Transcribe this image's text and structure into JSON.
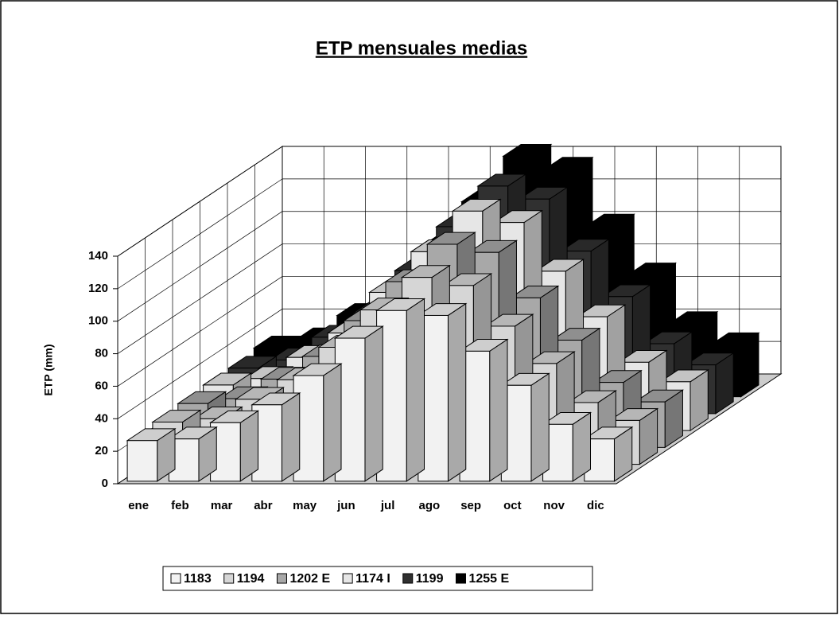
{
  "chart_data": {
    "type": "bar3d",
    "title": "ETP mensuales medias",
    "ylabel": "ETP (mm)",
    "categories": [
      "ene",
      "feb",
      "mar",
      "abr",
      "may",
      "jun",
      "jul",
      "ago",
      "sep",
      "oct",
      "nov",
      "dic"
    ],
    "ylim": [
      0,
      140
    ],
    "yticks": [
      0,
      20,
      40,
      60,
      80,
      100,
      120,
      140
    ],
    "grid": true,
    "legend": "bottom",
    "series": [
      {
        "name": "1183",
        "color": "#f2f2f2",
        "values": [
          25,
          26,
          36,
          47,
          65,
          88,
          105,
          102,
          80,
          59,
          35,
          26
        ]
      },
      {
        "name": "1194",
        "color": "#d6d6d6",
        "values": [
          26,
          28,
          40,
          52,
          72,
          95,
          115,
          110,
          85,
          62,
          38,
          27
        ]
      },
      {
        "name": "1202 E",
        "color": "#a8a8a8",
        "values": [
          27,
          30,
          42,
          56,
          78,
          102,
          125,
          120,
          92,
          66,
          40,
          28
        ]
      },
      {
        "name": "1174 I",
        "color": "#e6e6e6",
        "values": [
          28,
          32,
          45,
          60,
          85,
          110,
          135,
          128,
          98,
          70,
          42,
          30
        ]
      },
      {
        "name": "1199",
        "color": "#303030",
        "values": [
          28,
          33,
          47,
          62,
          88,
          115,
          140,
          132,
          100,
          72,
          43,
          30
        ]
      },
      {
        "name": "1255 E",
        "color": "#000000",
        "values": [
          30,
          35,
          50,
          66,
          92,
          120,
          148,
          140,
          105,
          75,
          45,
          32
        ]
      }
    ]
  }
}
